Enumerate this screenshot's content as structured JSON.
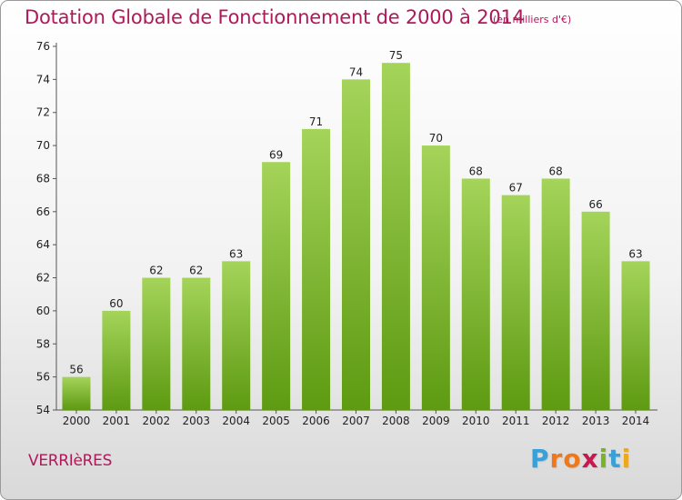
{
  "title": "Dotation Globale de Fonctionnement de 2000 à 2014",
  "unit_note": "(en milliers d'€)",
  "commune": "VERRIèRES",
  "logo": {
    "text": "Proxiti",
    "letter_colors": [
      "#3aa0d8",
      "#f07818",
      "#f07818",
      "#c81850",
      "#78b428",
      "#3aa0d8",
      "#f0a818"
    ]
  },
  "colors": {
    "bar_top": "#a4d45a",
    "bar_bottom": "#5e9a12",
    "title": "#b0185a",
    "text": "#222222"
  },
  "chart_data": {
    "type": "bar",
    "title": "Dotation Globale de Fonctionnement de 2000 à 2014",
    "xlabel": "",
    "ylabel": "",
    "unit": "en milliers d'€",
    "categories": [
      "2000",
      "2001",
      "2002",
      "2003",
      "2004",
      "2005",
      "2006",
      "2007",
      "2008",
      "2009",
      "2010",
      "2011",
      "2012",
      "2013",
      "2014"
    ],
    "values": [
      56,
      60,
      62,
      62,
      63,
      69,
      71,
      74,
      75,
      70,
      68,
      67,
      68,
      66,
      63
    ],
    "ylim": [
      54,
      76
    ],
    "yticks": [
      54,
      56,
      58,
      60,
      62,
      64,
      66,
      68,
      70,
      72,
      74,
      76
    ],
    "grid": false
  }
}
